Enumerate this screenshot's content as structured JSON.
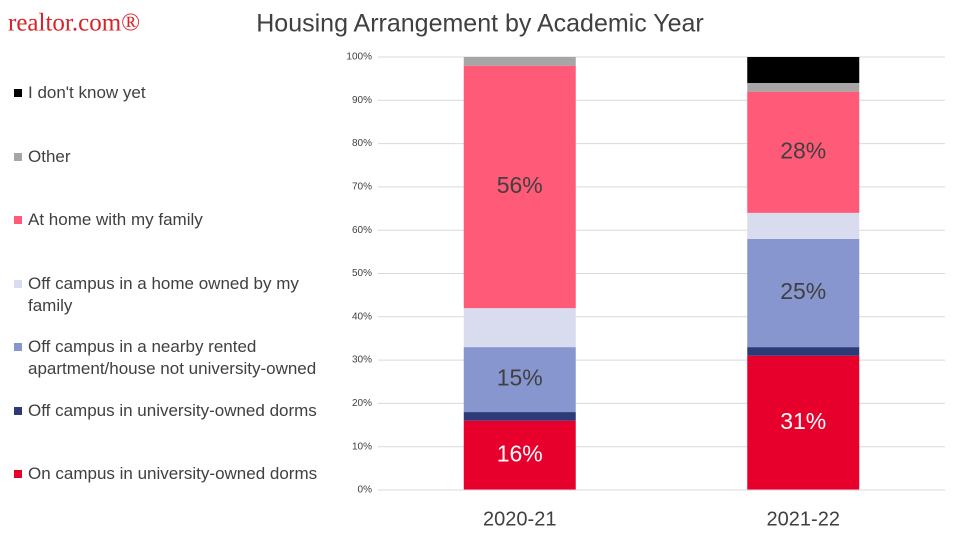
{
  "logo": "realtor.com®",
  "chart_data": {
    "type": "stacked_bar",
    "title": "Housing Arrangement by Academic Year",
    "categories": [
      "2020-21",
      "2021-22"
    ],
    "series": [
      {
        "name": "On campus in university-owned dorms",
        "color": "#e8002d",
        "values": [
          16,
          31
        ],
        "value_labels": [
          "16%",
          "31%"
        ]
      },
      {
        "name": "Off campus in university-owned dorms",
        "color": "#2e3a78",
        "values": [
          2,
          2
        ]
      },
      {
        "name": "Off campus in a nearby rented apartment/house not university-owned",
        "color": "#8896d0",
        "values": [
          15,
          25
        ],
        "value_labels": [
          "15%",
          "25%"
        ]
      },
      {
        "name": "Off campus in a home owned by my family",
        "color": "#d9dcef",
        "values": [
          9,
          6
        ]
      },
      {
        "name": "At home with my family",
        "color": "#ff5a78",
        "values": [
          56,
          28
        ],
        "value_labels": [
          "56%",
          "28%"
        ]
      },
      {
        "name": "Other",
        "color": "#a6a6a6",
        "values": [
          2,
          2
        ]
      },
      {
        "name": "I don't know yet",
        "color": "#000000",
        "values": [
          0,
          6
        ]
      }
    ],
    "ylim": [
      0,
      100
    ],
    "yticks": [
      {
        "value": 0,
        "label": "0%"
      },
      {
        "value": 10,
        "label": "10%"
      },
      {
        "value": 20,
        "label": "20%"
      },
      {
        "value": 30,
        "label": "30%"
      },
      {
        "value": 40,
        "label": "40%"
      },
      {
        "value": 50,
        "label": "50%"
      },
      {
        "value": 60,
        "label": "60%"
      },
      {
        "value": 70,
        "label": "70%"
      },
      {
        "value": 80,
        "label": "80%"
      },
      {
        "value": 90,
        "label": "90%"
      },
      {
        "value": 100,
        "label": "100%"
      }
    ],
    "grid": true,
    "legend": "left"
  }
}
